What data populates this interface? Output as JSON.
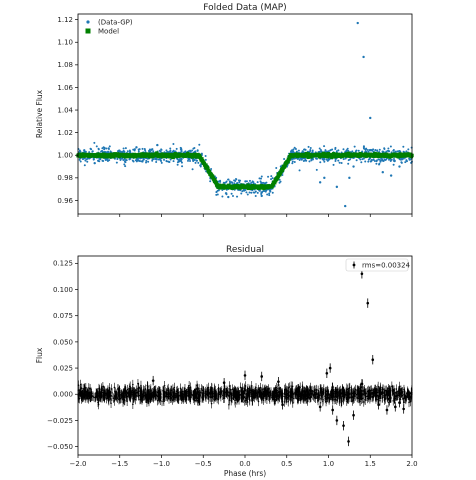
{
  "chart_data": [
    {
      "type": "scatter",
      "title": "Folded Data (MAP)",
      "xlabel": "",
      "ylabel": "Relative Flux",
      "xlim": [
        -2.0,
        2.0
      ],
      "ylim": [
        0.948,
        1.125
      ],
      "xticks": [
        -2.0,
        -1.5,
        -1.0,
        -0.5,
        0.0,
        0.5,
        1.0,
        1.5,
        2.0
      ],
      "xtick_labels_visible": false,
      "yticks": [
        0.96,
        0.98,
        1.0,
        1.02,
        1.04,
        1.06,
        1.08,
        1.1,
        1.12
      ],
      "ytick_labels": [
        "0.96",
        "0.98",
        "1.00",
        "1.02",
        "1.04",
        "1.06",
        "1.08",
        "1.10",
        "1.12"
      ],
      "grid": false,
      "legend_position": "top-left",
      "series": [
        {
          "name": "(Data-GP)",
          "color": "#1f77b4",
          "marker": "dot",
          "baseline_flux": 1.0,
          "noise_sigma": 0.0032,
          "n_points": 1500,
          "outliers": [
            {
              "x": 1.2,
              "y": 0.955
            },
            {
              "x": 1.35,
              "y": 1.117
            },
            {
              "x": 1.42,
              "y": 1.087
            },
            {
              "x": 1.5,
              "y": 1.033
            },
            {
              "x": 0.9,
              "y": 0.976
            },
            {
              "x": 1.1,
              "y": 0.972
            },
            {
              "x": 1.25,
              "y": 0.98
            },
            {
              "x": 1.3,
              "y": 0.99
            },
            {
              "x": 1.65,
              "y": 0.985
            },
            {
              "x": 1.75,
              "y": 0.982
            },
            {
              "x": 0.45,
              "y": 0.985
            },
            {
              "x": -0.2,
              "y": 0.963
            },
            {
              "x": 0.2,
              "y": 0.964
            },
            {
              "x": 1.85,
              "y": 0.99
            },
            {
              "x": -1.8,
              "y": 0.993
            },
            {
              "x": -1.05,
              "y": 1.009
            },
            {
              "x": -1.3,
              "y": 1.007
            },
            {
              "x": 0.95,
              "y": 0.98
            }
          ]
        },
        {
          "name": "Model",
          "color": "#008000",
          "marker": "square",
          "transit_depth": 0.028,
          "ingress_start": -0.55,
          "ingress_end": -0.32,
          "egress_start": 0.32,
          "egress_end": 0.55,
          "spacing": 0.004
        }
      ]
    },
    {
      "type": "scatter",
      "title": "Residual",
      "xlabel": "Phase (hrs)",
      "ylabel": "Flux",
      "xlim": [
        -2.0,
        2.0
      ],
      "ylim": [
        -0.058,
        0.132
      ],
      "xticks": [
        -2.0,
        -1.5,
        -1.0,
        -0.5,
        0.0,
        0.5,
        1.0,
        1.5,
        2.0
      ],
      "xtick_labels": [
        "−2.0",
        "−1.5",
        "−1.0",
        "−0.5",
        "0.0",
        "0.5",
        "1.0",
        "1.5",
        "2.0"
      ],
      "yticks": [
        -0.05,
        -0.025,
        0.0,
        0.025,
        0.05,
        0.075,
        0.1,
        0.125
      ],
      "ytick_labels": [
        "−0.050",
        "−0.025",
        "0.000",
        "0.025",
        "0.050",
        "0.075",
        "0.100",
        "0.125"
      ],
      "grid": false,
      "legend_position": "top-right",
      "legend_text": "rms=0.00324",
      "series": [
        {
          "name": "rms=0.00324",
          "color": "#000000",
          "marker": "errorbar",
          "noise_sigma": 0.0032,
          "errorbar_half": 0.0045,
          "n_points": 1500,
          "outliers": [
            {
              "x": 1.34,
              "y": 0.123
            },
            {
              "x": 1.4,
              "y": 0.115
            },
            {
              "x": 1.47,
              "y": 0.087
            },
            {
              "x": 1.53,
              "y": 0.033
            },
            {
              "x": 1.24,
              "y": -0.045
            },
            {
              "x": 1.18,
              "y": -0.03
            },
            {
              "x": 1.1,
              "y": -0.025
            },
            {
              "x": 1.05,
              "y": -0.015
            },
            {
              "x": 0.98,
              "y": 0.02
            },
            {
              "x": 1.02,
              "y": 0.025
            },
            {
              "x": 0.0,
              "y": 0.018
            },
            {
              "x": 0.2,
              "y": 0.017
            },
            {
              "x": 0.45,
              "y": -0.01
            },
            {
              "x": 0.9,
              "y": -0.012
            },
            {
              "x": 1.3,
              "y": -0.02
            },
            {
              "x": 1.6,
              "y": -0.01
            },
            {
              "x": 1.7,
              "y": -0.015
            },
            {
              "x": 1.8,
              "y": -0.012
            },
            {
              "x": 1.85,
              "y": -0.008
            },
            {
              "x": 1.9,
              "y": -0.014
            },
            {
              "x": -1.1,
              "y": 0.013
            },
            {
              "x": -0.25,
              "y": 0.011
            },
            {
              "x": 0.4,
              "y": 0.012
            },
            {
              "x": 1.4,
              "y": 0.01
            }
          ]
        }
      ]
    }
  ]
}
